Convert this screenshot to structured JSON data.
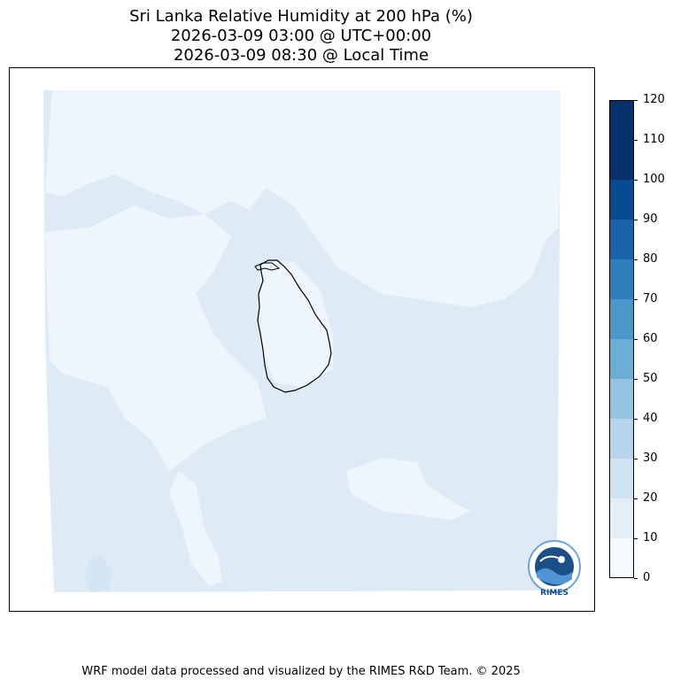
{
  "chart_data": {
    "type": "heatmap",
    "title": "Sri Lanka Relative Humidity at 200 hPa (%)",
    "subtitle_utc": "2026-03-09 03:00 @ UTC+00:00",
    "subtitle_local": "2026-03-09 08:30 @ Local Time",
    "colorbar": {
      "ticks": [
        0,
        10,
        20,
        30,
        40,
        50,
        60,
        70,
        80,
        90,
        100,
        110,
        120
      ],
      "range": [
        0,
        120
      ],
      "colors": [
        "#f7fbff",
        "#e3eef9",
        "#d0e1f2",
        "#b7d4ea",
        "#94c4df",
        "#6aaed6",
        "#4a98c9",
        "#2e7ebc",
        "#1764ab",
        "#084a91",
        "#08306b",
        "#08306b"
      ]
    },
    "field_summary": {
      "dominant_band": "10-20",
      "secondary_band": "0-10"
    }
  },
  "logo": {
    "label": "RIMES"
  },
  "footer": "WRF model data processed and visualized by the RIMES R&D Team. © 2025"
}
